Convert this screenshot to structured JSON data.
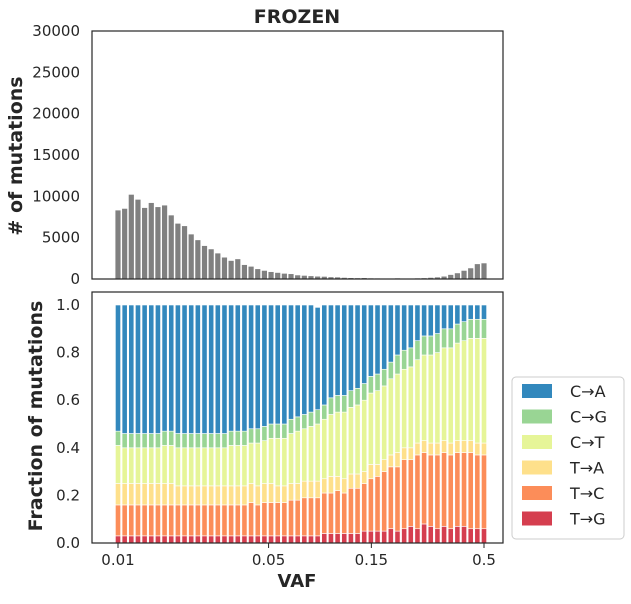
{
  "chart_data": [
    {
      "type": "bar",
      "title": "FROZEN",
      "ylabel": "# of mutations",
      "ylim": [
        0,
        30000
      ],
      "yticks": [
        0,
        5000,
        10000,
        15000,
        20000,
        25000,
        30000
      ],
      "x_scale": "log",
      "x_range": [
        0.01,
        0.5
      ],
      "color": "#808080",
      "values": [
        8300,
        8500,
        10200,
        9600,
        8600,
        9200,
        8700,
        8900,
        7700,
        6700,
        6400,
        5400,
        4700,
        4000,
        3600,
        3100,
        2600,
        2200,
        2400,
        1700,
        1500,
        1200,
        1000,
        850,
        750,
        650,
        600,
        450,
        400,
        350,
        300,
        280,
        220,
        200,
        150,
        120,
        100,
        120,
        80,
        70,
        60,
        60,
        80,
        60,
        60,
        80,
        100,
        150,
        200,
        300,
        500,
        700,
        1000,
        1300,
        1800,
        1900
      ]
    },
    {
      "type": "bar",
      "stacked": true,
      "ylabel": "Fraction of mutations",
      "xlabel": "VAF",
      "ylim": [
        0,
        1.0
      ],
      "yticks": [
        0.0,
        0.2,
        0.4,
        0.6,
        0.8,
        1.0
      ],
      "x_scale": "log",
      "x_range": [
        0.01,
        0.5
      ],
      "xticks": [
        0.01,
        0.05,
        0.15,
        0.5
      ],
      "xtick_labels": [
        "0.01",
        "0.05",
        "0.15",
        "0.5"
      ],
      "legend_position": "right",
      "series": [
        {
          "name": "T→G",
          "color": "#d53e4f",
          "values": [
            0.03,
            0.03,
            0.03,
            0.03,
            0.03,
            0.03,
            0.03,
            0.03,
            0.03,
            0.03,
            0.03,
            0.03,
            0.03,
            0.03,
            0.03,
            0.03,
            0.03,
            0.03,
            0.03,
            0.03,
            0.03,
            0.03,
            0.03,
            0.03,
            0.03,
            0.03,
            0.03,
            0.03,
            0.03,
            0.03,
            0.03,
            0.04,
            0.04,
            0.04,
            0.04,
            0.04,
            0.04,
            0.05,
            0.05,
            0.05,
            0.05,
            0.06,
            0.05,
            0.06,
            0.07,
            0.06,
            0.08,
            0.07,
            0.06,
            0.07,
            0.06,
            0.07,
            0.07,
            0.06,
            0.06,
            0.06
          ]
        },
        {
          "name": "T→C",
          "color": "#fc8d59",
          "values": [
            0.13,
            0.13,
            0.13,
            0.13,
            0.13,
            0.13,
            0.13,
            0.13,
            0.13,
            0.13,
            0.13,
            0.13,
            0.13,
            0.13,
            0.13,
            0.13,
            0.13,
            0.13,
            0.13,
            0.13,
            0.14,
            0.13,
            0.14,
            0.14,
            0.14,
            0.14,
            0.15,
            0.15,
            0.16,
            0.16,
            0.16,
            0.17,
            0.17,
            0.18,
            0.17,
            0.19,
            0.19,
            0.2,
            0.22,
            0.23,
            0.25,
            0.26,
            0.27,
            0.29,
            0.28,
            0.31,
            0.3,
            0.3,
            0.31,
            0.31,
            0.31,
            0.31,
            0.31,
            0.32,
            0.31,
            0.31
          ]
        },
        {
          "name": "T→A",
          "color": "#fee08b",
          "values": [
            0.09,
            0.09,
            0.09,
            0.09,
            0.09,
            0.09,
            0.09,
            0.09,
            0.09,
            0.08,
            0.08,
            0.08,
            0.08,
            0.08,
            0.08,
            0.08,
            0.08,
            0.08,
            0.08,
            0.08,
            0.08,
            0.08,
            0.08,
            0.08,
            0.07,
            0.07,
            0.07,
            0.07,
            0.07,
            0.07,
            0.07,
            0.06,
            0.07,
            0.06,
            0.06,
            0.06,
            0.06,
            0.05,
            0.06,
            0.05,
            0.05,
            0.05,
            0.06,
            0.05,
            0.05,
            0.05,
            0.05,
            0.05,
            0.05,
            0.05,
            0.05,
            0.05,
            0.05,
            0.05,
            0.05,
            0.05
          ]
        },
        {
          "name": "C→T",
          "color": "#e6f598",
          "values": [
            0.16,
            0.15,
            0.15,
            0.15,
            0.15,
            0.15,
            0.15,
            0.16,
            0.16,
            0.16,
            0.16,
            0.16,
            0.16,
            0.16,
            0.16,
            0.16,
            0.16,
            0.17,
            0.17,
            0.17,
            0.17,
            0.18,
            0.18,
            0.19,
            0.2,
            0.2,
            0.21,
            0.22,
            0.22,
            0.23,
            0.24,
            0.25,
            0.26,
            0.27,
            0.28,
            0.28,
            0.29,
            0.3,
            0.3,
            0.31,
            0.31,
            0.32,
            0.33,
            0.33,
            0.34,
            0.35,
            0.36,
            0.37,
            0.38,
            0.39,
            0.4,
            0.41,
            0.42,
            0.43,
            0.44,
            0.44
          ]
        },
        {
          "name": "C→G",
          "color": "#99d594",
          "values": [
            0.06,
            0.06,
            0.06,
            0.06,
            0.06,
            0.06,
            0.06,
            0.06,
            0.06,
            0.06,
            0.06,
            0.06,
            0.06,
            0.06,
            0.06,
            0.06,
            0.06,
            0.06,
            0.06,
            0.06,
            0.06,
            0.06,
            0.06,
            0.06,
            0.06,
            0.06,
            0.06,
            0.06,
            0.06,
            0.06,
            0.06,
            0.06,
            0.07,
            0.07,
            0.07,
            0.07,
            0.07,
            0.07,
            0.07,
            0.07,
            0.07,
            0.07,
            0.08,
            0.08,
            0.08,
            0.08,
            0.08,
            0.08,
            0.08,
            0.08,
            0.08,
            0.08,
            0.08,
            0.08,
            0.08,
            0.08
          ]
        },
        {
          "name": "C→A",
          "color": "#3288bd",
          "values": [
            0.53,
            0.54,
            0.54,
            0.54,
            0.54,
            0.54,
            0.54,
            0.53,
            0.53,
            0.54,
            0.54,
            0.54,
            0.54,
            0.54,
            0.54,
            0.54,
            0.54,
            0.53,
            0.53,
            0.53,
            0.52,
            0.52,
            0.51,
            0.5,
            0.5,
            0.5,
            0.48,
            0.47,
            0.46,
            0.45,
            0.43,
            0.42,
            0.39,
            0.38,
            0.38,
            0.36,
            0.35,
            0.33,
            0.3,
            0.29,
            0.27,
            0.24,
            0.21,
            0.19,
            0.18,
            0.15,
            0.13,
            0.13,
            0.12,
            0.1,
            0.1,
            0.08,
            0.07,
            0.06,
            0.06,
            0.06
          ]
        }
      ]
    }
  ]
}
